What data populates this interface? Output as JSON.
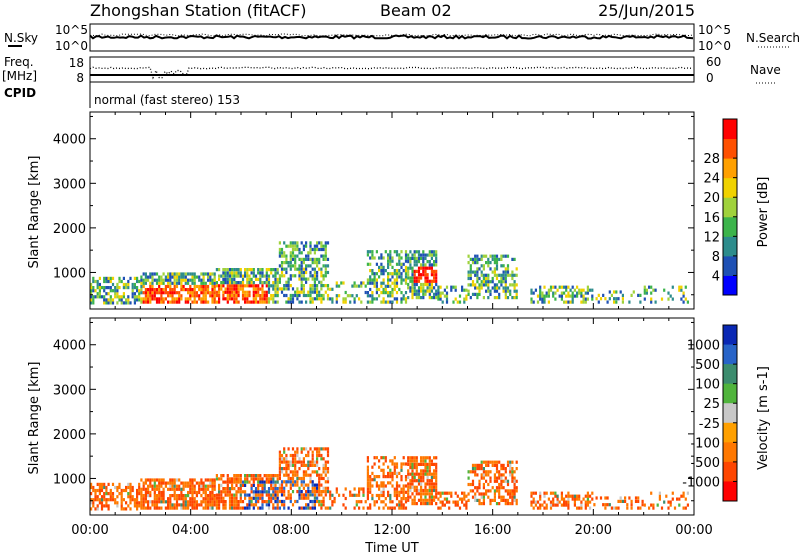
{
  "header": {
    "station": "Zhongshan Station (fitACF)",
    "beam": "Beam 02",
    "date": "25/Jun/2015"
  },
  "summary_panels": {
    "nsky_label": "N.Sky",
    "nsky_ticks": [
      "10^5",
      "10^0"
    ],
    "nsearch_label": "N.Search",
    "nsearch_ticks": [
      "10^5",
      "10^0"
    ],
    "freq_label_top": "Freq.",
    "freq_label_unit": "[MHz]",
    "freq_ticks": [
      "18",
      "8"
    ],
    "nave_label": "Nave",
    "nave_ticks": [
      "60",
      "0"
    ],
    "cpid_label": "CPID",
    "cpid_text": "normal (fast stereo) 153"
  },
  "chart_data": [
    {
      "type": "heatmap",
      "name": "power-panel",
      "parameter": "Power",
      "ylabel": "Slant Range [km]",
      "xlabel": "",
      "ylim": [
        180,
        4600
      ],
      "yticks": [
        1000,
        2000,
        3000,
        4000
      ],
      "x_ticks": [
        "00:00",
        "04:00",
        "08:00",
        "12:00",
        "16:00",
        "20:00",
        "00:00"
      ],
      "x_range_hours": [
        0,
        24
      ],
      "colorbar": {
        "label": "Power [dB]",
        "ticks": [
          "4",
          "8",
          "12",
          "16",
          "20",
          "24",
          "28"
        ],
        "range": [
          0,
          32
        ],
        "colors": [
          "#0000ff",
          "#1e50b4",
          "#2d8c8c",
          "#3cb44b",
          "#a0d23c",
          "#f0d200",
          "#ffa000",
          "#ff5000",
          "#ff0000"
        ]
      }
    },
    {
      "type": "heatmap",
      "name": "velocity-panel",
      "parameter": "Velocity",
      "ylabel": "Slant Range [km]",
      "xlabel": "Time UT",
      "ylim": [
        180,
        4600
      ],
      "yticks": [
        1000,
        2000,
        3000,
        4000
      ],
      "x_ticks": [
        "00:00",
        "04:00",
        "08:00",
        "12:00",
        "16:00",
        "20:00",
        "00:00"
      ],
      "x_range_hours": [
        0,
        24
      ],
      "colorbar": {
        "label_main": "Velocity",
        "label_unit": "[m s-1]",
        "ticks": [
          "1000",
          "500",
          "100",
          "25",
          "-25",
          "-100",
          "-500",
          "-1000"
        ],
        "colors": [
          "#0a28b4",
          "#2864c8",
          "#3c8c6e",
          "#50b43c",
          "#c8c8c8",
          "#ffa000",
          "#ff7800",
          "#ff4600",
          "#ff0000"
        ]
      }
    }
  ]
}
